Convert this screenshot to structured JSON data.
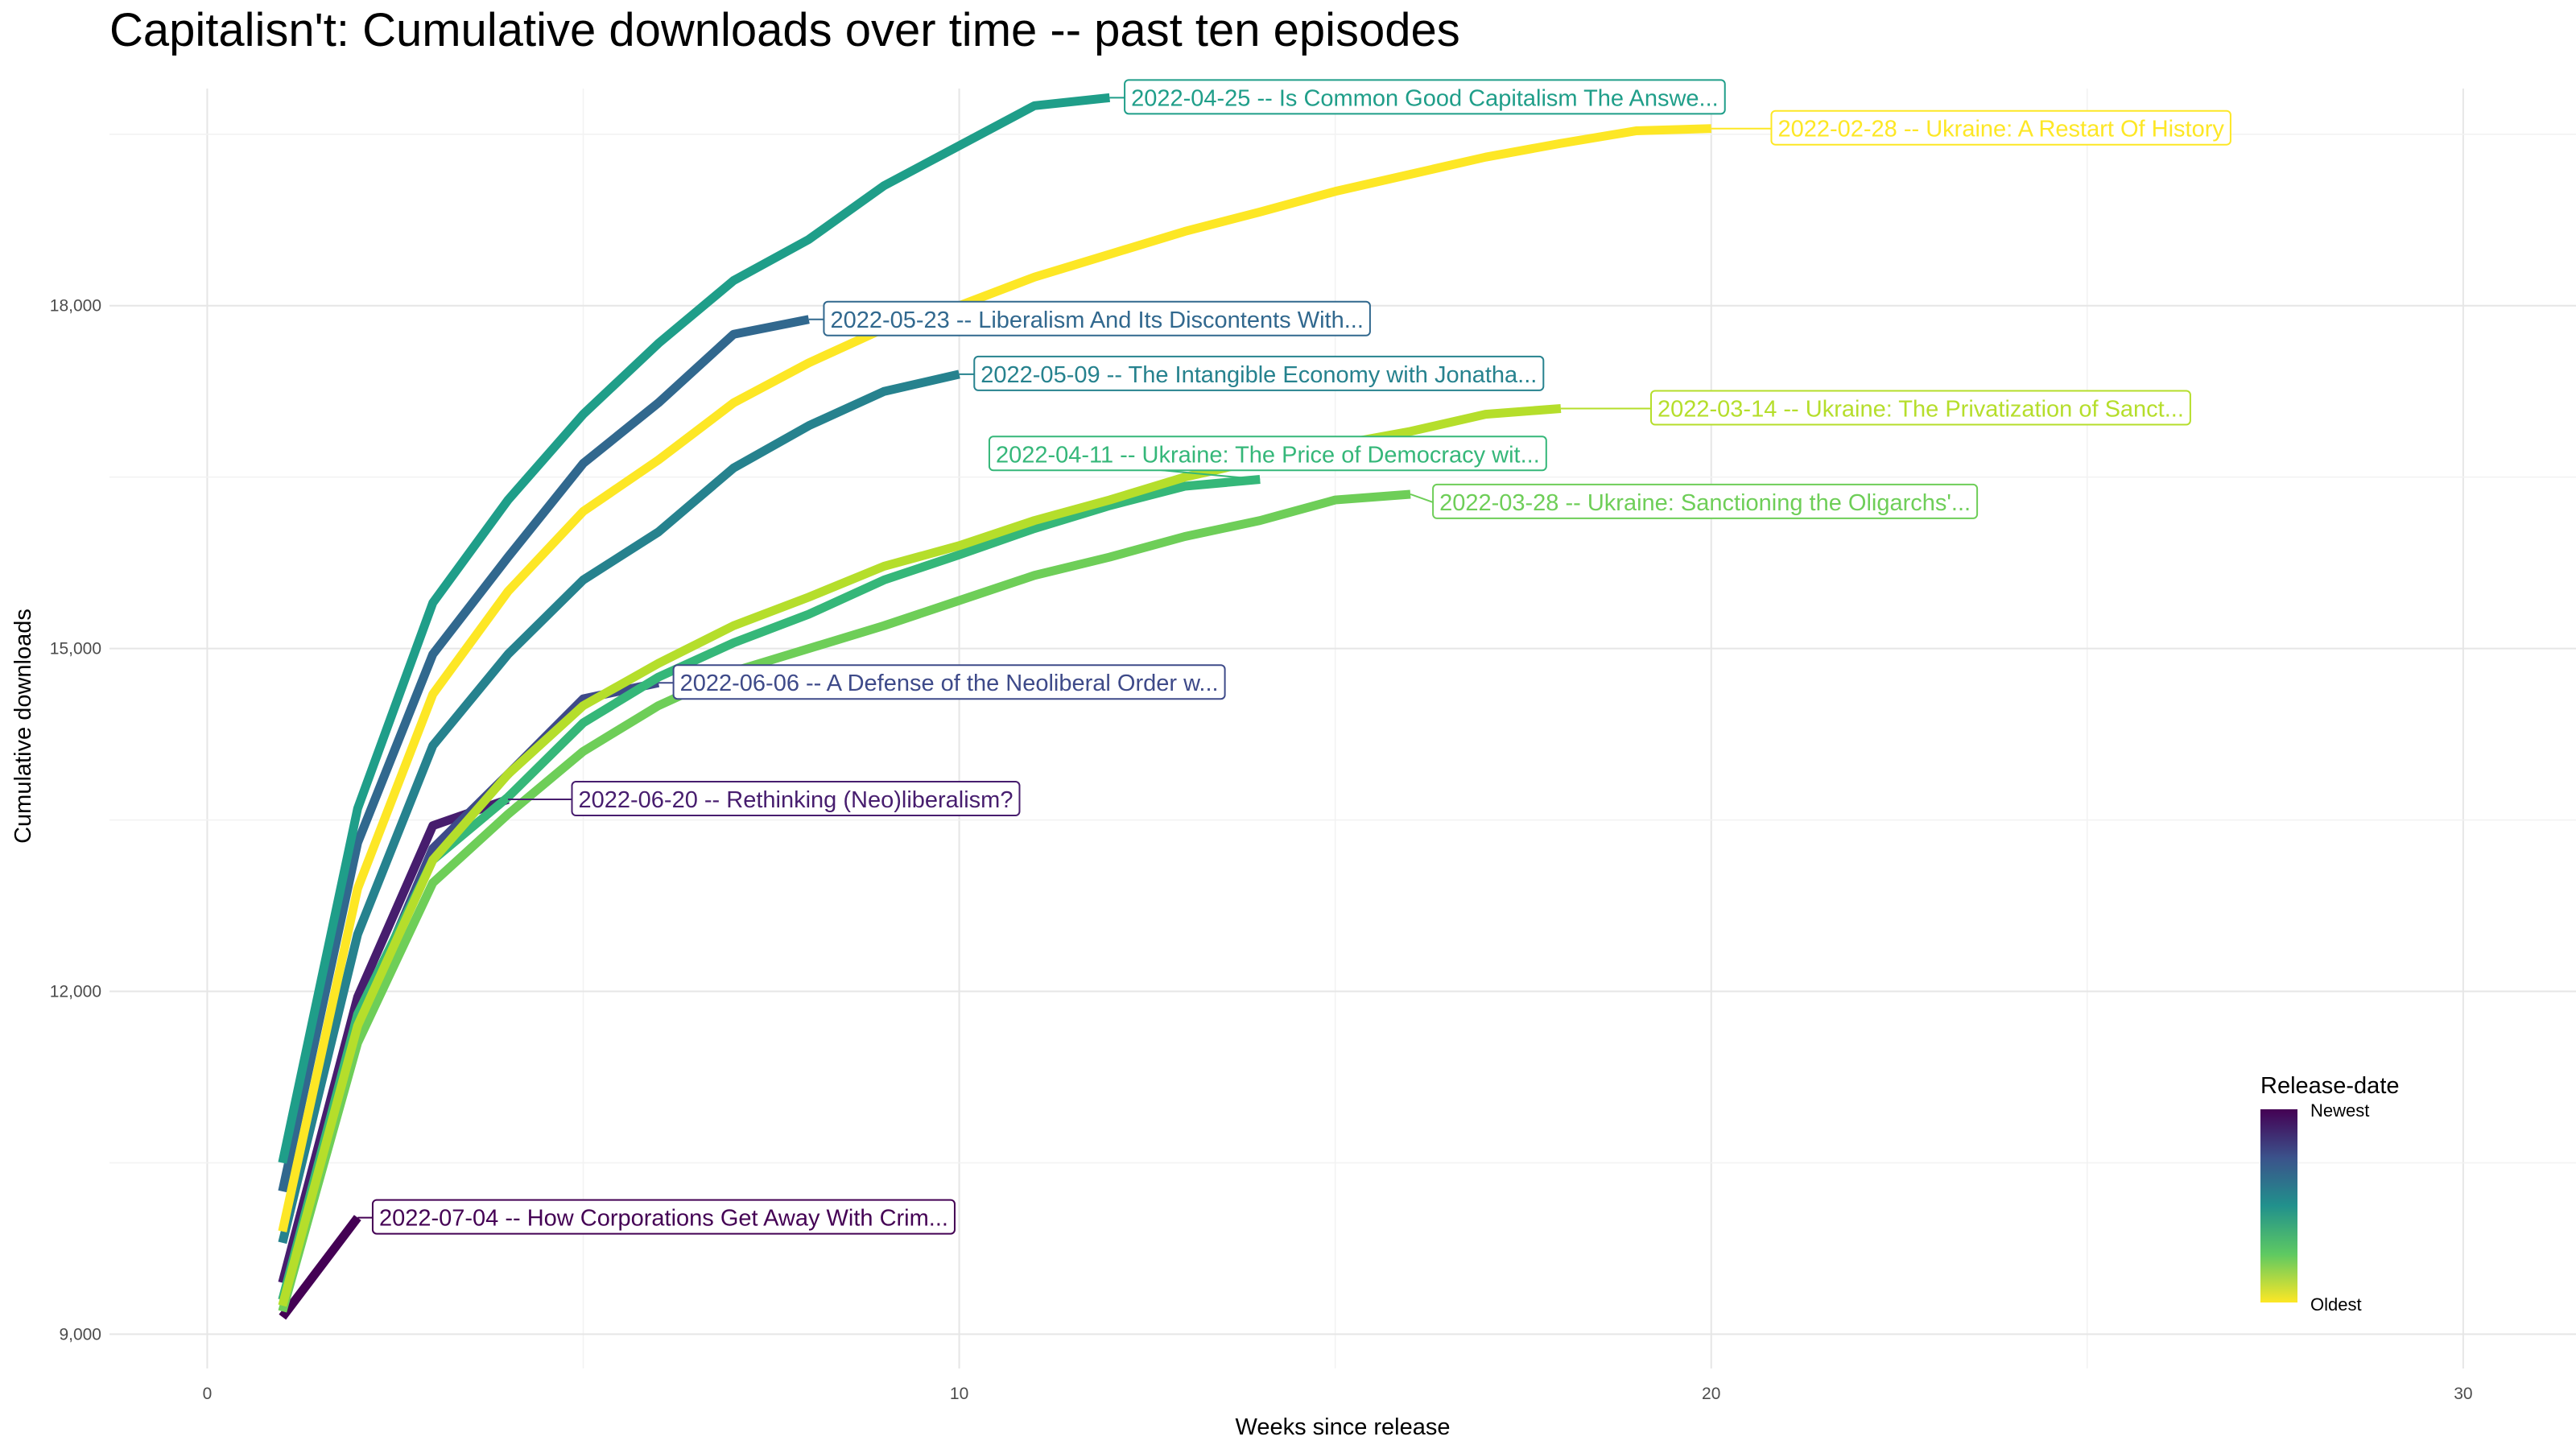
{
  "title": "Capitalisn't: Cumulative downloads over time -- past ten episodes",
  "chart_data": {
    "type": "line",
    "title": "Capitalisn't: Cumulative downloads over time -- past ten episodes",
    "xlabel": "Weeks since release",
    "ylabel": "Cumulative downloads",
    "xlim": [
      -1.3,
      31.5
    ],
    "ylim": [
      8700,
      19900
    ],
    "x_ticks": [
      0,
      10,
      20,
      30
    ],
    "x_tick_labels": [
      "0",
      "10",
      "20",
      "30"
    ],
    "y_ticks": [
      9000,
      12000,
      15000,
      18000
    ],
    "y_tick_labels": [
      "9,000",
      "12,000",
      "15,000",
      "18,000"
    ],
    "grid": true,
    "legend": {
      "title": "Release-date",
      "position": "bottom-right",
      "top_label": "Newest",
      "bottom_label": "Oldest",
      "gradient": [
        "#440154",
        "#3b528b",
        "#21918c",
        "#5ec962",
        "#fde725"
      ]
    },
    "series": [
      {
        "name": "2022-07-04 -- How Corporations Get Away With Crim...",
        "color": "#440154",
        "x": [
          1,
          2
        ],
        "y": [
          9150,
          10020
        ],
        "label_at": [
          2.2,
          10020
        ]
      },
      {
        "name": "2022-06-20 -- Rethinking (Neo)liberalism?",
        "color": "#471d6e",
        "x": [
          1,
          2,
          3,
          4
        ],
        "y": [
          9450,
          11950,
          13450,
          13680
        ],
        "label_at": [
          4.85,
          13680
        ]
      },
      {
        "name": "2022-06-06 -- A Defense of the Neoliberal Order w...",
        "color": "#3e4a89",
        "x": [
          1,
          2,
          3,
          4,
          5,
          6
        ],
        "y": [
          9300,
          11700,
          13250,
          13900,
          14560,
          14700
        ],
        "label_at": [
          6.2,
          14700
        ]
      },
      {
        "name": "2022-05-23 -- Liberalism And Its Discontents With...",
        "color": "#31688e",
        "x": [
          1,
          2,
          3,
          4,
          5,
          6,
          7,
          8
        ],
        "y": [
          10250,
          13300,
          14950,
          15800,
          16620,
          17150,
          17750,
          17880
        ],
        "label_at": [
          8.2,
          17880
        ]
      },
      {
        "name": "2022-05-09 -- The Intangible Economy with Jonatha...",
        "color": "#26828e",
        "x": [
          1,
          2,
          3,
          4,
          5,
          6,
          7,
          8,
          9,
          10
        ],
        "y": [
          9800,
          12500,
          14150,
          14950,
          15600,
          16020,
          16580,
          16950,
          17250,
          17400
        ],
        "label_at": [
          10.2,
          17400
        ]
      },
      {
        "name": "2022-04-25 -- Is Common Good Capitalism The Answe...",
        "color": "#1f9e89",
        "x": [
          1,
          2,
          3,
          4,
          5,
          6,
          7,
          8,
          9,
          10,
          11,
          12
        ],
        "y": [
          10500,
          13600,
          15400,
          16300,
          17050,
          17670,
          18220,
          18580,
          19050,
          19400,
          19750,
          19820
        ],
        "label_at": [
          12.2,
          19820
        ]
      },
      {
        "name": "2022-04-11 -- Ukraine: The Price of Democracy wit...",
        "color": "#35b779",
        "x": [
          1,
          2,
          3,
          4,
          5,
          6,
          7,
          8,
          9,
          10,
          11,
          12,
          13,
          14
        ],
        "y": [
          9300,
          11800,
          13150,
          13700,
          14350,
          14750,
          15050,
          15300,
          15600,
          15820,
          16050,
          16250,
          16420,
          16480
        ],
        "label_at": [
          10.4,
          16700
        ]
      },
      {
        "name": "2022-03-28 -- Ukraine: Sanctioning the Oligarchs'...",
        "color": "#6ece58",
        "x": [
          1,
          2,
          3,
          4,
          5,
          6,
          7,
          8,
          9,
          10,
          11,
          12,
          13,
          14,
          15,
          16
        ],
        "y": [
          9200,
          11550,
          12950,
          13550,
          14100,
          14500,
          14800,
          15000,
          15200,
          15420,
          15640,
          15800,
          15980,
          16120,
          16300,
          16350
        ],
        "label_at": [
          16.3,
          16280
        ]
      },
      {
        "name": "2022-03-14 -- Ukraine: The Privatization of Sanct...",
        "color": "#b5de2b",
        "x": [
          1,
          2,
          3,
          4,
          5,
          6,
          7,
          8,
          9,
          10,
          11,
          12,
          13,
          14,
          15,
          16,
          17,
          18
        ],
        "y": [
          9250,
          11700,
          13150,
          13900,
          14500,
          14870,
          15200,
          15450,
          15720,
          15900,
          16120,
          16300,
          16500,
          16650,
          16780,
          16900,
          17050,
          17100
        ],
        "label_at": [
          19.2,
          17100
        ]
      },
      {
        "name": "2022-02-28 -- Ukraine: A Restart Of History",
        "color": "#fde725",
        "x": [
          1,
          2,
          3,
          4,
          5,
          6,
          7,
          8,
          9,
          10,
          11,
          12,
          13,
          14,
          15,
          16,
          17,
          18,
          19,
          20
        ],
        "y": [
          9900,
          12900,
          14600,
          15500,
          16200,
          16650,
          17150,
          17500,
          17800,
          18000,
          18250,
          18450,
          18650,
          18820,
          19000,
          19150,
          19300,
          19420,
          19530,
          19550
        ],
        "label_at": [
          20.8,
          19550
        ]
      }
    ]
  }
}
